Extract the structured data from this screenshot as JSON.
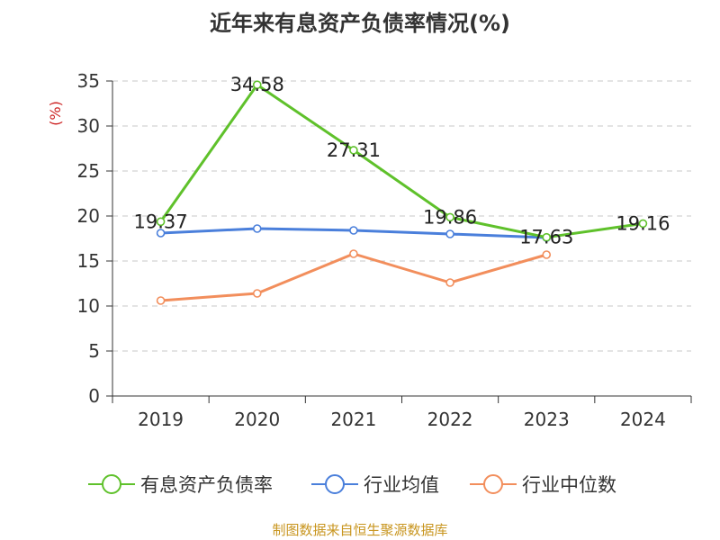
{
  "chart_data": {
    "type": "line",
    "title": "近年来有息资产负债率情况(%)",
    "ylabel": "(%)",
    "xlabel": "",
    "categories": [
      "2019",
      "2020",
      "2021",
      "2022",
      "2023",
      "2024"
    ],
    "ylim": [
      0,
      35
    ],
    "yticks": [
      0,
      5,
      10,
      15,
      20,
      25,
      30,
      35
    ],
    "grid": true,
    "legend_position": "bottom",
    "series": [
      {
        "name": "有息资产负债率",
        "color": "#5fc12b",
        "values": [
          19.37,
          34.58,
          27.31,
          19.86,
          17.63,
          19.16
        ],
        "labels": [
          "19.37",
          "34.58",
          "27.31",
          "19.86",
          "17.63",
          "19.16"
        ]
      },
      {
        "name": "行业均值",
        "color": "#4a7fdb",
        "values": [
          18.1,
          18.6,
          18.4,
          18.0,
          17.6,
          null
        ]
      },
      {
        "name": "行业中位数",
        "color": "#f28e5c",
        "values": [
          10.6,
          11.4,
          15.8,
          12.6,
          15.7,
          null
        ]
      }
    ],
    "source": "制图数据来自恒生聚源数据库"
  }
}
